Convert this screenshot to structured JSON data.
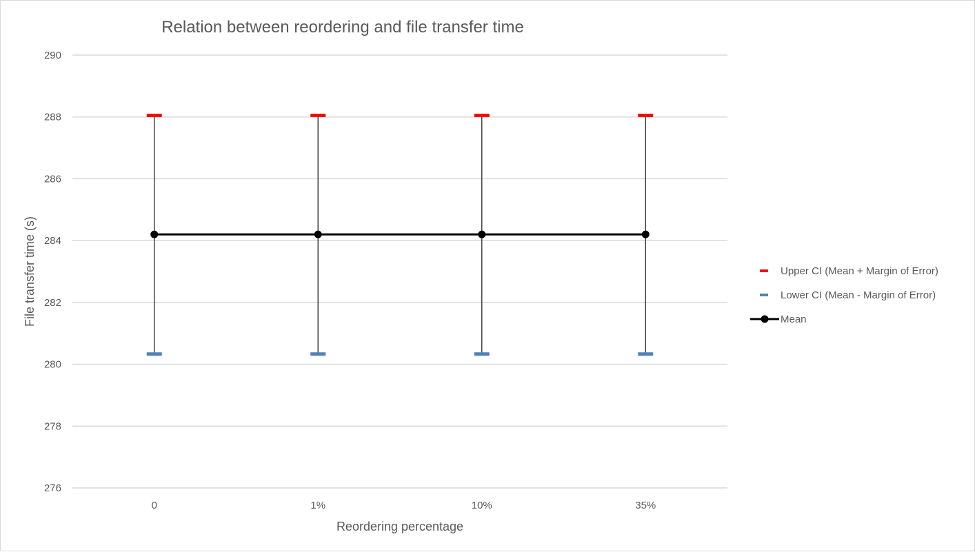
{
  "chart_data": {
    "type": "line",
    "title": "Relation between reordering and file transfer time",
    "xlabel": "Reordering percentage",
    "ylabel": "File transfer time (s)",
    "categories": [
      "0",
      "1%",
      "10%",
      "35%"
    ],
    "ylim": [
      276,
      290
    ],
    "yticks": [
      276,
      278,
      280,
      282,
      284,
      286,
      288,
      290
    ],
    "grid": true,
    "legend_position": "right",
    "series": [
      {
        "name": "Upper CI (Mean + Margin of Error)",
        "values": [
          288.05,
          288.05,
          288.05,
          288.05
        ],
        "color": "#ff0000",
        "marker": "dash"
      },
      {
        "name": "Lower CI (Mean - Margin of Error)",
        "values": [
          280.33,
          280.33,
          280.33,
          280.33
        ],
        "color": "#4f81bd",
        "marker": "dash"
      },
      {
        "name": "Mean",
        "values": [
          284.2,
          284.2,
          284.2,
          284.2
        ],
        "color": "#000000",
        "marker": "circle"
      }
    ],
    "colors": {
      "gridline": "#d9d9d9",
      "hi_lo_line": "#404040",
      "text": "#595959"
    }
  }
}
